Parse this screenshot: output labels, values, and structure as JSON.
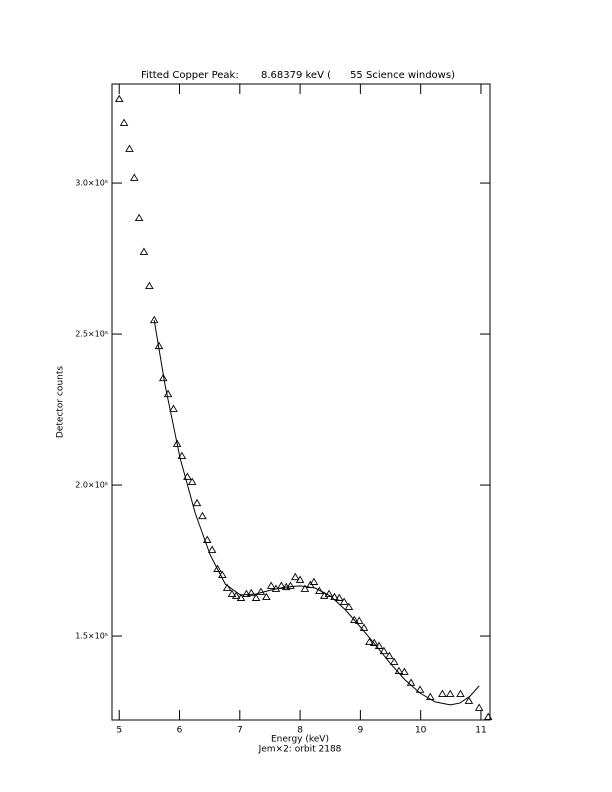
{
  "chart_data": {
    "type": "scatter",
    "title": "Fitted Copper Peak:       8.68379 keV (      55 Science windows)",
    "x_label": "Energy (keV)",
    "subtitle": "Jem×2: orbit 2188",
    "y_label": "Detector counts",
    "xlim": [
      4.88,
      11.15
    ],
    "ylim": [
      122200,
      332800
    ],
    "xticks": [
      5,
      6,
      7,
      8,
      9,
      10,
      11
    ],
    "yticks": [
      {
        "value": 150000,
        "label": "1.5×10⁵"
      },
      {
        "value": 200000,
        "label": "2.0×10⁵"
      },
      {
        "value": 250000,
        "label": "2.5×10⁵"
      },
      {
        "value": 300000,
        "label": "3.0×10⁵"
      }
    ],
    "series": [
      {
        "type": "scatter",
        "color": "#000000",
        "x": [
          5.0,
          5.08,
          5.17,
          5.25,
          5.33,
          5.41,
          5.5,
          5.58,
          5.66,
          5.73,
          5.81,
          5.9,
          5.96,
          6.04,
          6.13,
          6.21,
          6.29,
          6.38,
          6.46,
          6.54,
          6.63,
          6.71,
          6.79,
          6.87,
          6.94,
          7.02,
          7.11,
          7.19,
          7.27,
          7.35,
          7.44,
          7.52,
          7.6,
          7.69,
          7.77,
          7.84,
          7.92,
          8.0,
          8.08,
          8.17,
          8.23,
          8.32,
          8.4,
          8.48,
          8.57,
          8.65,
          8.73,
          8.81,
          8.9,
          8.98,
          9.06,
          9.15,
          9.23,
          9.31,
          9.39,
          9.48,
          9.56,
          9.64,
          9.73,
          9.84,
          9.99,
          10.16,
          10.36,
          10.49,
          10.66,
          10.8,
          10.97,
          11.12
        ],
        "values": [
          327800,
          319900,
          311300,
          301700,
          288400,
          277200,
          265900,
          254600,
          246000,
          235400,
          230100,
          225200,
          213600,
          209600,
          202700,
          201000,
          194000,
          189700,
          181800,
          178500,
          172200,
          170200,
          165900,
          163900,
          163300,
          162600,
          163900,
          164200,
          162600,
          164600,
          162900,
          166600,
          165600,
          166600,
          166200,
          166600,
          169500,
          168600,
          165600,
          166900,
          167900,
          164900,
          163300,
          163900,
          162900,
          162600,
          161300,
          159600,
          155300,
          155000,
          152700,
          148000,
          147700,
          146700,
          145000,
          143400,
          141400,
          138400,
          138100,
          134500,
          132200,
          129800,
          130800,
          130800,
          130800,
          128500,
          126200,
          123200
        ]
      },
      {
        "type": "line",
        "color": "#000000",
        "x": [
          5.58,
          5.76,
          6.01,
          6.26,
          6.51,
          6.76,
          7.01,
          7.26,
          7.51,
          7.75,
          8.0,
          8.25,
          8.5,
          8.75,
          9.0,
          9.25,
          9.49,
          9.74,
          9.99,
          10.24,
          10.49,
          10.65,
          10.82,
          10.97
        ],
        "values": [
          254600,
          233100,
          208900,
          190700,
          176800,
          167200,
          163600,
          163900,
          165200,
          166200,
          166600,
          165900,
          163300,
          158700,
          153000,
          147100,
          141100,
          135500,
          131100,
          128200,
          127200,
          127800,
          130100,
          133500
        ]
      }
    ]
  }
}
